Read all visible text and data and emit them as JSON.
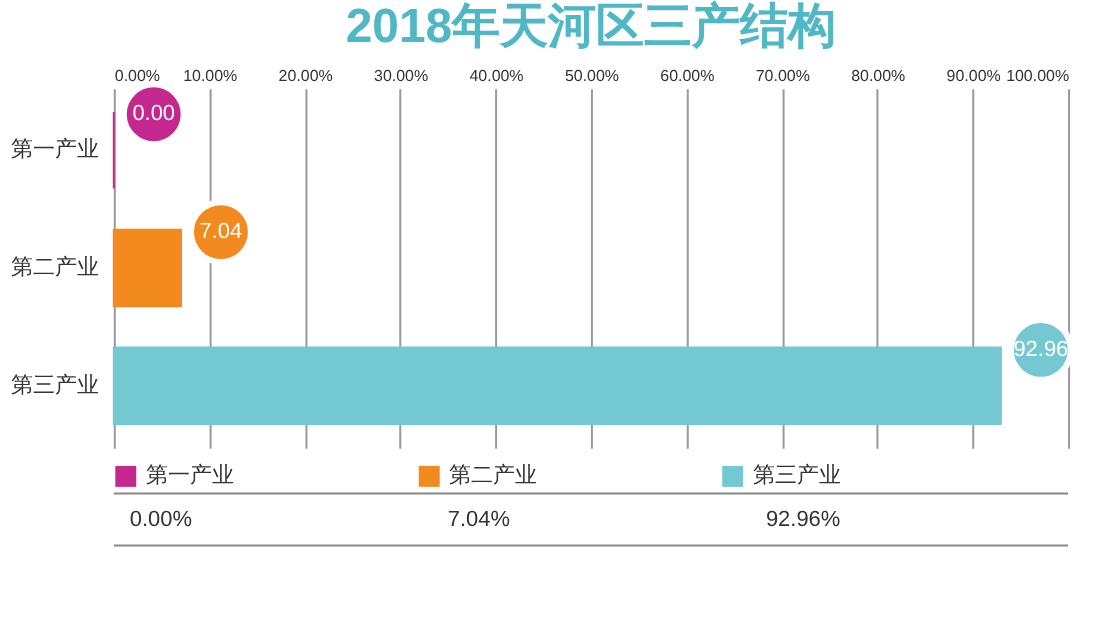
{
  "chart_data": {
    "type": "bar",
    "title": "2018年天河区三产结构",
    "orientation": "horizontal",
    "categories": [
      "第一产业",
      "第二产业",
      "第三产业"
    ],
    "series": [
      {
        "name": "第一产业",
        "color": "#c4288e",
        "values": [
          0.0,
          null,
          null
        ],
        "value_labels": [
          "0.00",
          null,
          null
        ]
      },
      {
        "name": "第二产业",
        "color": "#f28a1f",
        "values": [
          null,
          7.04,
          null
        ],
        "value_labels": [
          null,
          "7.04",
          null
        ]
      },
      {
        "name": "第三产业",
        "color": "#74c8d2",
        "values": [
          null,
          null,
          92.96
        ],
        "value_labels": [
          null,
          null,
          "92.96"
        ]
      }
    ],
    "xlim": [
      0,
      100
    ],
    "xticks": [
      {
        "value": 0,
        "label": "0.00%"
      },
      {
        "value": 10,
        "label": "10.00%"
      },
      {
        "value": 20,
        "label": "20.00%"
      },
      {
        "value": 30,
        "label": "30.00%"
      },
      {
        "value": 40,
        "label": "40.00%"
      },
      {
        "value": 50,
        "label": "50.00%"
      },
      {
        "value": 60,
        "label": "60.00%"
      },
      {
        "value": 70,
        "label": "70.00%"
      },
      {
        "value": 80,
        "label": "80.00%"
      },
      {
        "value": 90,
        "label": "90.00%"
      },
      {
        "value": 100,
        "label": "100.00%"
      }
    ],
    "grid": "x",
    "legend": "bottom",
    "annotations": [
      "0.00%",
      "7.04%",
      "92.96%"
    ]
  }
}
